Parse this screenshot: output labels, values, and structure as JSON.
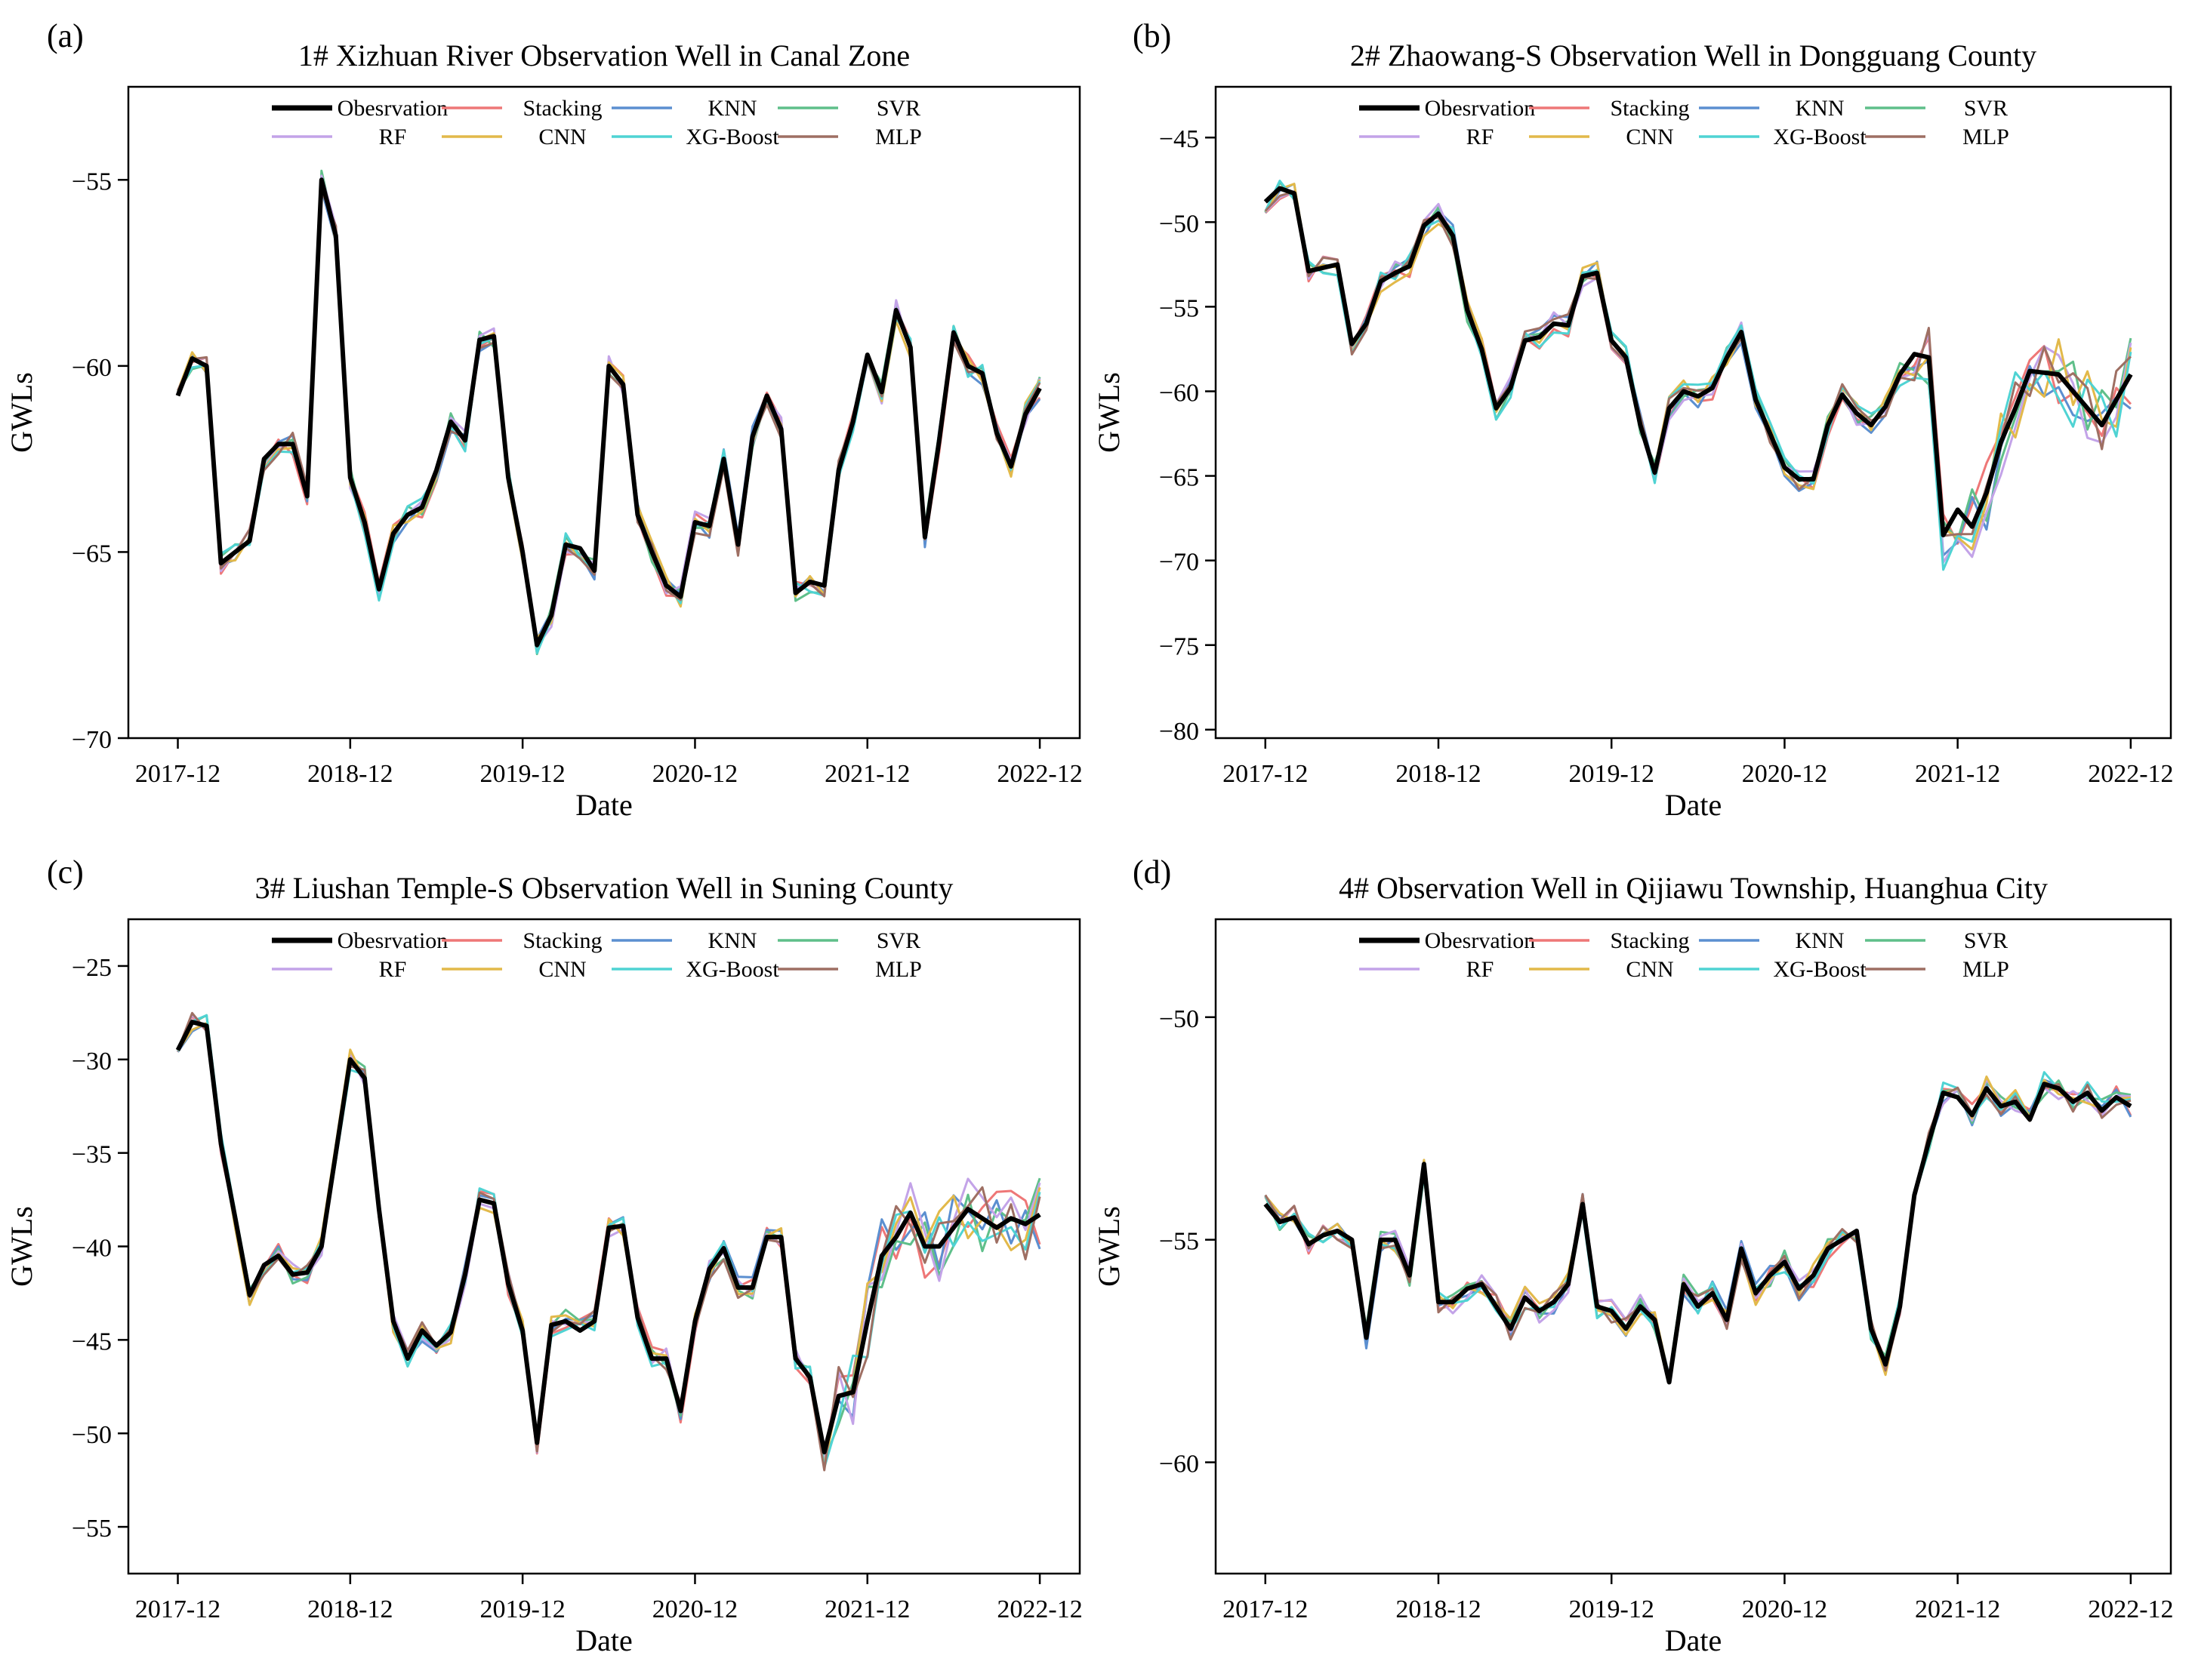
{
  "figure": {
    "colors": {
      "Obesrvation": "#000000",
      "Stacking": "#ee7777",
      "KNN": "#5b8fd0",
      "SVR": "#5fbf8a",
      "RF": "#c3a3e8",
      "CNN": "#e2b94a",
      "XG-Boost": "#4fd3d3",
      "MLP": "#9e6f63"
    },
    "x_tick_labels": [
      "2017-12",
      "2018-12",
      "2019-12",
      "2020-12",
      "2021-12",
      "2022-12"
    ]
  },
  "chart_data": [
    {
      "panel_label": "(a)",
      "type": "line",
      "title": "1# Xizhuan River Observation Well in Canal Zone",
      "xlabel": "Date",
      "ylabel": "GWLs",
      "x_tick_labels": [
        "2017-12",
        "2018-12",
        "2019-12",
        "2020-12",
        "2021-12",
        "2022-12"
      ],
      "yticks": [
        -55,
        -60,
        -65,
        -70
      ],
      "ylim": [
        -70,
        -52.5
      ],
      "legend_row1": [
        "Obesrvation",
        "Stacking",
        "KNN",
        "SVR"
      ],
      "legend_row2": [
        "RF",
        "CNN",
        "XG-Boost",
        "MLP"
      ],
      "x": [
        0,
        1,
        2,
        3,
        4,
        5,
        6,
        7,
        8,
        9,
        10,
        11,
        12,
        13,
        14,
        15,
        16,
        17,
        18,
        19,
        20,
        21,
        22,
        23,
        24,
        25,
        26,
        27,
        28,
        29,
        30,
        31,
        32,
        33,
        34,
        35,
        36,
        37,
        38,
        39,
        40,
        41,
        42,
        43,
        44,
        45,
        46,
        47,
        48,
        49,
        50,
        51,
        52,
        53,
        54,
        55,
        56,
        57,
        58,
        59,
        60
      ],
      "series": [
        {
          "name": "Obesrvation",
          "values": [
            -60.8,
            -59.8,
            -60.0,
            -65.3,
            -65.0,
            -64.7,
            -62.5,
            -62.1,
            -62.1,
            -63.5,
            -55.0,
            -56.5,
            -63.0,
            -64.2,
            -66.0,
            -64.5,
            -64.0,
            -63.8,
            -62.8,
            -61.5,
            -62.0,
            -59.3,
            -59.2,
            -63.0,
            -65.0,
            -67.5,
            -66.7,
            -64.8,
            -64.9,
            -65.5,
            -60.0,
            -60.5,
            -64.0,
            -65.0,
            -65.9,
            -66.2,
            -64.2,
            -64.3,
            -62.5,
            -64.8,
            -61.9,
            -60.8,
            -61.7,
            -66.1,
            -65.8,
            -65.9,
            -62.8,
            -61.5,
            -59.7,
            -60.7,
            -58.5,
            -59.5,
            -64.6,
            -62.0,
            -59.1,
            -60.0,
            -60.2,
            -61.8,
            -62.7,
            -61.3,
            -60.6
          ]
        }
      ]
    },
    {
      "panel_label": "(b)",
      "type": "line",
      "title": "2# Zhaowang-S Observation Well in Dongguang County",
      "xlabel": "Date",
      "ylabel": "GWLs",
      "x_tick_labels": [
        "2017-12",
        "2018-12",
        "2019-12",
        "2020-12",
        "2021-12",
        "2022-12"
      ],
      "yticks": [
        -45,
        -50,
        -55,
        -60,
        -65,
        -70,
        -75,
        -80
      ],
      "ylim": [
        -80.5,
        -42
      ],
      "legend_row1": [
        "Obesrvation",
        "Stacking",
        "KNN",
        "SVR"
      ],
      "legend_row2": [
        "RF",
        "CNN",
        "XG-Boost",
        "MLP"
      ],
      "x": [
        0,
        1,
        2,
        3,
        4,
        5,
        6,
        7,
        8,
        9,
        10,
        11,
        12,
        13,
        14,
        15,
        16,
        17,
        18,
        19,
        20,
        21,
        22,
        23,
        24,
        25,
        26,
        27,
        28,
        29,
        30,
        31,
        32,
        33,
        34,
        35,
        36,
        37,
        38,
        39,
        40,
        41,
        42,
        43,
        44,
        45,
        46,
        47,
        48,
        49,
        50,
        51,
        52,
        53,
        54,
        55,
        56,
        57,
        58,
        59,
        60
      ],
      "series": [
        {
          "name": "Obesrvation",
          "values": [
            -48.8,
            -48.0,
            -48.3,
            -52.9,
            -52.7,
            -52.5,
            -57.2,
            -56.0,
            -53.5,
            -53.0,
            -52.6,
            -50.2,
            -49.5,
            -50.8,
            -55.2,
            -57.5,
            -61.0,
            -59.8,
            -57.0,
            -56.8,
            -56.0,
            -56.1,
            -53.2,
            -53.0,
            -57.0,
            -58.0,
            -62.0,
            -64.8,
            -61.0,
            -60.0,
            -60.3,
            -59.8,
            -58.0,
            -56.5,
            -60.5,
            -62.5,
            -64.5,
            -65.2,
            -65.2,
            -62.0,
            -60.2,
            -61.3,
            -62.0,
            -60.9,
            -59.0,
            -57.8,
            -58.0,
            -68.5,
            -67.0,
            -68.0,
            -66.0,
            -63.0,
            -61.0,
            -58.8,
            -58.9,
            -59.0,
            -60.0,
            -61.0,
            -62.0,
            -60.5,
            -59.0
          ]
        }
      ]
    },
    {
      "panel_label": "(c)",
      "type": "line",
      "title": "3# Liushan Temple-S Observation Well in Suning County",
      "xlabel": "Date",
      "ylabel": "GWLs",
      "x_tick_labels": [
        "2017-12",
        "2018-12",
        "2019-12",
        "2020-12",
        "2021-12",
        "2022-12"
      ],
      "yticks": [
        -25,
        -30,
        -35,
        -40,
        -45,
        -50,
        -55
      ],
      "ylim": [
        -57.5,
        -22.5
      ],
      "legend_row1": [
        "Obesrvation",
        "Stacking",
        "KNN",
        "SVR"
      ],
      "legend_row2": [
        "RF",
        "CNN",
        "XG-Boost",
        "MLP"
      ],
      "x": [
        0,
        1,
        2,
        3,
        4,
        5,
        6,
        7,
        8,
        9,
        10,
        11,
        12,
        13,
        14,
        15,
        16,
        17,
        18,
        19,
        20,
        21,
        22,
        23,
        24,
        25,
        26,
        27,
        28,
        29,
        30,
        31,
        32,
        33,
        34,
        35,
        36,
        37,
        38,
        39,
        40,
        41,
        42,
        43,
        44,
        45,
        46,
        47,
        48,
        49,
        50,
        51,
        52,
        53,
        54,
        55,
        56,
        57,
        58,
        59,
        60
      ],
      "series": [
        {
          "name": "Obesrvation",
          "values": [
            -29.5,
            -28.0,
            -28.2,
            -34.5,
            -38.5,
            -42.6,
            -41.0,
            -40.5,
            -41.5,
            -41.4,
            -40.0,
            -35.0,
            -30.0,
            -31.0,
            -38.0,
            -44.0,
            -46.0,
            -44.5,
            -45.3,
            -44.6,
            -41.5,
            -37.5,
            -37.7,
            -42.0,
            -44.5,
            -50.5,
            -44.2,
            -44.0,
            -44.5,
            -44.0,
            -39.0,
            -38.9,
            -43.8,
            -46.0,
            -46.0,
            -48.8,
            -44.0,
            -41.2,
            -40.1,
            -42.2,
            -42.2,
            -39.5,
            -39.5,
            -46.0,
            -47.0,
            -51.0,
            -48.0,
            -47.8,
            -44.0,
            -40.5,
            -39.5,
            -38.2,
            -40.0,
            -40.0,
            -39.0,
            -38.0,
            -38.5,
            -39.0,
            -38.5,
            -38.8,
            -38.3
          ]
        }
      ]
    },
    {
      "panel_label": "(d)",
      "type": "line",
      "title": "4# Observation Well in Qijiawu Township, Huanghua City",
      "xlabel": "Date",
      "ylabel": "GWLs",
      "x_tick_labels": [
        "2017-12",
        "2018-12",
        "2019-12",
        "2020-12",
        "2021-12",
        "2022-12"
      ],
      "yticks": [
        -50,
        -55,
        -60
      ],
      "ylim": [
        -62.5,
        -47.8
      ],
      "legend_row1": [
        "Obesrvation",
        "Stacking",
        "KNN",
        "SVR"
      ],
      "legend_row2": [
        "RF",
        "CNN",
        "XG-Boost",
        "MLP"
      ],
      "x": [
        0,
        1,
        2,
        3,
        4,
        5,
        6,
        7,
        8,
        9,
        10,
        11,
        12,
        13,
        14,
        15,
        16,
        17,
        18,
        19,
        20,
        21,
        22,
        23,
        24,
        25,
        26,
        27,
        28,
        29,
        30,
        31,
        32,
        33,
        34,
        35,
        36,
        37,
        38,
        39,
        40,
        41,
        42,
        43,
        44,
        45,
        46,
        47,
        48,
        49,
        50,
        51,
        52,
        53,
        54,
        55,
        56,
        57,
        58,
        59,
        60
      ],
      "series": [
        {
          "name": "Obesrvation",
          "values": [
            -54.2,
            -54.6,
            -54.5,
            -55.1,
            -54.9,
            -54.8,
            -55.0,
            -57.2,
            -55.0,
            -55.0,
            -55.8,
            -53.3,
            -56.4,
            -56.4,
            -56.1,
            -56.0,
            -56.5,
            -57.0,
            -56.3,
            -56.6,
            -56.4,
            -56.0,
            -54.2,
            -56.5,
            -56.6,
            -57.0,
            -56.5,
            -56.8,
            -58.2,
            -56.0,
            -56.5,
            -56.2,
            -56.8,
            -55.2,
            -56.2,
            -55.8,
            -55.5,
            -56.1,
            -55.8,
            -55.2,
            -55.0,
            -54.8,
            -57.0,
            -57.8,
            -56.5,
            -54.0,
            -52.8,
            -51.7,
            -51.8,
            -52.2,
            -51.6,
            -52.0,
            -51.9,
            -52.3,
            -51.5,
            -51.6,
            -51.9,
            -51.7,
            -52.1,
            -51.8,
            -52.0
          ]
        }
      ]
    }
  ]
}
